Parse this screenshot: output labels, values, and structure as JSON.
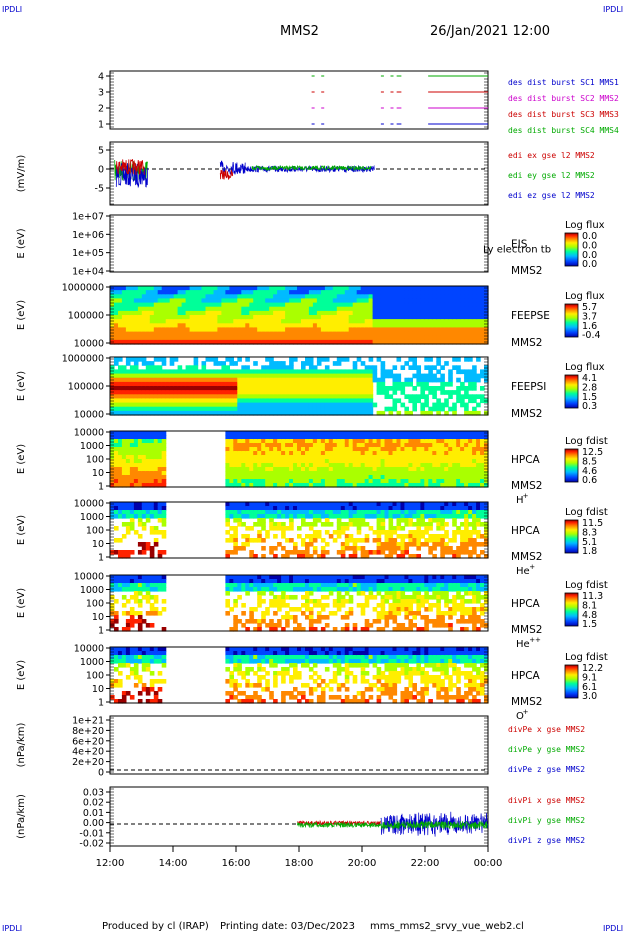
{
  "header": {
    "corner_tl": "IPDLI",
    "corner_tr": "IPDLI",
    "corner_bl": "IPDLI",
    "corner_br": "IPDLI",
    "spacecraft": "MMS2",
    "datetime": "26/Jan/2021 12:00"
  },
  "footer": {
    "produced_by": "Produced by cl (IRAP)",
    "printing_date": "Printing date: 03/Dec/2023",
    "script": "mms_mms2_srvy_vue_web2.cl"
  },
  "colors": {
    "red": "#cc0000",
    "green": "#00aa00",
    "blue": "#0000cc",
    "magenta": "#cc00cc",
    "spectrogram_colormap": [
      "#0000aa",
      "#0044ff",
      "#00bbff",
      "#00ff99",
      "#aaff00",
      "#ffee00",
      "#ff8800",
      "#ff2200",
      "#990000"
    ]
  },
  "time_axis": {
    "ticks": [
      "12:00",
      "14:00",
      "16:00",
      "18:00",
      "20:00",
      "22:00",
      "00:00"
    ],
    "range_hours": [
      12,
      24
    ]
  },
  "chart_data": [
    {
      "id": "burst",
      "type": "line",
      "ylim": [
        0.5,
        4.5
      ],
      "yticks": [
        "4",
        "3",
        "2",
        "1"
      ],
      "legend": [
        {
          "text": "des dist burst SC1 MMS1",
          "color": "#0000cc"
        },
        {
          "text": "des dist burst SC2 MMS2",
          "color": "#cc00cc"
        },
        {
          "text": "des dist burst SC3 MMS3",
          "color": "#cc0000"
        },
        {
          "text": "des dist burst SC4 MMS4",
          "color": "#00aa00"
        }
      ],
      "segments_hours": [
        [
          18.4,
          18.8
        ],
        [
          20.6,
          21.0
        ],
        [
          21.1,
          21.25
        ],
        [
          22.1,
          24.0
        ]
      ]
    },
    {
      "id": "edi",
      "type": "line",
      "ylabel": "(mV/m)",
      "ylim": [
        -8,
        5
      ],
      "yticks": [
        "5",
        "0",
        "-5"
      ],
      "legend": [
        {
          "text": "edi ex gse l2 MMS2",
          "color": "#cc0000"
        },
        {
          "text": "edi ey gse l2 MMS2",
          "color": "#00aa00"
        },
        {
          "text": "edi ez gse l2 MMS2",
          "color": "#0000cc"
        }
      ]
    },
    {
      "id": "eis",
      "type": "heatmap",
      "ylabel": "E (eV)",
      "yticks": [
        "1e+07",
        "1e+06",
        "1e+05",
        "1e+04"
      ],
      "label": "EIS",
      "label2": "MMS2",
      "overlay": "Ly electron tb",
      "colorbar_title": "Log flux",
      "colorbar_ticks": [
        "0.0",
        "0.0",
        "0.0",
        "0.0"
      ]
    },
    {
      "id": "feepse",
      "type": "heatmap",
      "ylabel": "E (eV)",
      "yticks": [
        "1000000",
        "100000",
        "10000"
      ],
      "label": "FEEPSE",
      "label2": "MMS2",
      "colorbar_title": "Log flux",
      "colorbar_ticks": [
        "5.7",
        "3.7",
        "1.6",
        "-0.4"
      ]
    },
    {
      "id": "feepsi",
      "type": "heatmap",
      "ylabel": "E (eV)",
      "yticks": [
        "1000000",
        "100000",
        "10000"
      ],
      "label": "FEEPSI",
      "label2": "MMS2",
      "colorbar_title": "Log flux",
      "colorbar_ticks": [
        "4.1",
        "2.8",
        "1.5",
        "0.3"
      ]
    },
    {
      "id": "hpca_h",
      "type": "heatmap",
      "ylabel": "E (eV)",
      "yticks": [
        "10000",
        "1000",
        "100",
        "10",
        "1"
      ],
      "label": "HPCA",
      "label2": "MMS2",
      "species": "H",
      "species_sup": "+",
      "colorbar_title": "Log fdist",
      "colorbar_ticks": [
        "12.5",
        "8.5",
        "4.6",
        "0.6"
      ]
    },
    {
      "id": "hpca_he1",
      "type": "heatmap",
      "ylabel": "E (eV)",
      "yticks": [
        "10000",
        "1000",
        "100",
        "10",
        "1"
      ],
      "label": "HPCA",
      "label2": "MMS2",
      "species": "He",
      "species_sup": "+",
      "colorbar_title": "Log fdist",
      "colorbar_ticks": [
        "11.5",
        "8.3",
        "5.1",
        "1.8"
      ]
    },
    {
      "id": "hpca_he2",
      "type": "heatmap",
      "ylabel": "E (eV)",
      "yticks": [
        "10000",
        "1000",
        "100",
        "10",
        "1"
      ],
      "label": "HPCA",
      "label2": "MMS2",
      "species": "He",
      "species_sup": "++",
      "colorbar_title": "Log fdist",
      "colorbar_ticks": [
        "11.3",
        "8.1",
        "4.8",
        "1.5"
      ]
    },
    {
      "id": "hpca_o",
      "type": "heatmap",
      "ylabel": "E (eV)",
      "yticks": [
        "10000",
        "1000",
        "100",
        "10",
        "1"
      ],
      "label": "HPCA",
      "label2": "MMS2",
      "species": "O",
      "species_sup": "+",
      "colorbar_title": "Log fdist",
      "colorbar_ticks": [
        "12.2",
        "9.1",
        "6.1",
        "3.0"
      ]
    },
    {
      "id": "divpe",
      "type": "line",
      "ylabel": "(nPa/km)",
      "yticks": [
        "1e+21",
        "8e+20",
        "6e+20",
        "4e+20",
        "2e+20",
        "0"
      ],
      "legend": [
        {
          "text": "divPe x gse MMS2",
          "color": "#cc0000"
        },
        {
          "text": "divPe y gse MMS2",
          "color": "#00aa00"
        },
        {
          "text": "divPe z gse MMS2",
          "color": "#0000cc"
        }
      ]
    },
    {
      "id": "divpi",
      "type": "line",
      "ylabel": "(nPa/km)",
      "ylim": [
        -0.025,
        0.035
      ],
      "yticks": [
        "0.03",
        "0.02",
        "0.01",
        "0.00",
        "-0.01",
        "-0.02"
      ],
      "legend": [
        {
          "text": "divPi x gse MMS2",
          "color": "#cc0000"
        },
        {
          "text": "divPi y gse MMS2",
          "color": "#00aa00"
        },
        {
          "text": "divPi z gse MMS2",
          "color": "#0000cc"
        }
      ]
    }
  ]
}
